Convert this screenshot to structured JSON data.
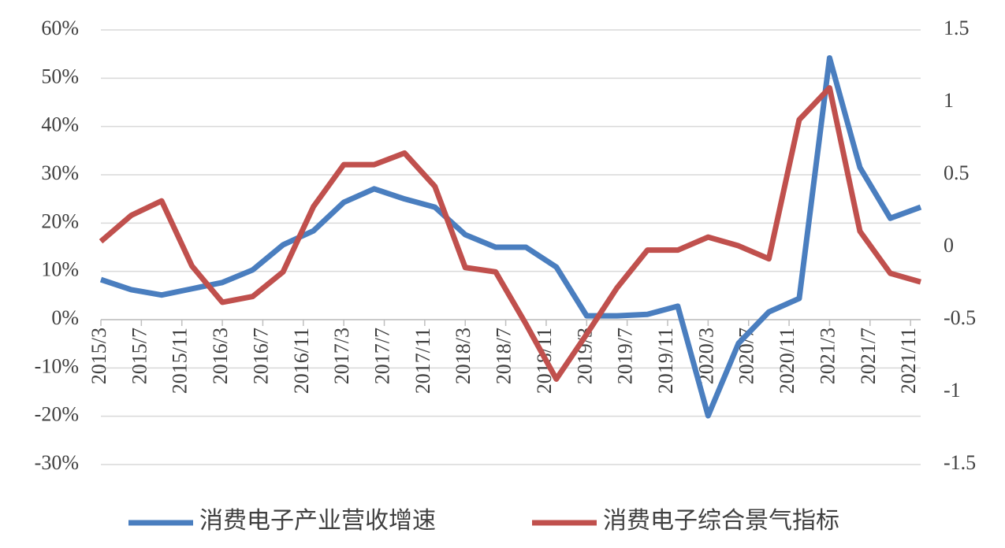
{
  "chart_data": {
    "type": "line",
    "x": [
      "2015/3",
      "2015/6",
      "2015/9",
      "2015/12",
      "2016/3",
      "2016/6",
      "2016/9",
      "2016/12",
      "2017/3",
      "2017/6",
      "2017/9",
      "2017/12",
      "2018/3",
      "2018/6",
      "2018/9",
      "2018/12",
      "2019/3",
      "2019/6",
      "2019/9",
      "2019/12",
      "2020/3",
      "2020/6",
      "2020/9",
      "2020/12",
      "2021/3",
      "2021/6",
      "2021/9",
      "2021/12"
    ],
    "xlim": [
      "2015/3",
      "2021/12"
    ],
    "xticks": [
      "2015/3",
      "2015/7",
      "2015/11",
      "2016/3",
      "2016/7",
      "2016/11",
      "2017/3",
      "2017/7",
      "2017/11",
      "2018/3",
      "2018/7",
      "2018/11",
      "2019/3",
      "2019/7",
      "2019/11",
      "2020/3",
      "2020/7",
      "2020/11",
      "2021/3",
      "2021/7",
      "2021/11"
    ],
    "series": [
      {
        "name": "消费电子产业营收增速",
        "color": "#4a7ebf",
        "values": [
          8.3,
          6.2,
          5.1,
          6.4,
          7.7,
          10.3,
          15.5,
          18.4,
          24.3,
          27.1,
          25,
          23.3,
          17.6,
          15,
          15,
          10.9,
          0.8,
          0.8,
          1.1,
          2.8,
          -19.9,
          -4.9,
          1.6,
          4.4,
          54.2,
          31.5,
          21,
          23.3
        ]
      },
      {
        "name": "消费电子综合景气指标",
        "color": "#c0504d",
        "axis": "y2",
        "values": [
          0.04,
          0.22,
          0.32,
          -0.13,
          -0.38,
          -0.34,
          -0.17,
          0.28,
          0.57,
          0.57,
          0.65,
          0.42,
          -0.14,
          -0.17,
          -0.53,
          -0.91,
          -0.6,
          -0.28,
          -0.02,
          -0.02,
          0.07,
          0.01,
          -0.08,
          0.88,
          1.1,
          0.11,
          -0.18,
          -0.24
        ]
      }
    ],
    "ylim": [
      -30,
      60
    ],
    "yticks": [
      {
        "value": 60,
        "label": "60%"
      },
      {
        "value": 50,
        "label": "50%"
      },
      {
        "value": 40,
        "label": "40%"
      },
      {
        "value": 30,
        "label": "30%"
      },
      {
        "value": 20,
        "label": "20%"
      },
      {
        "value": 10,
        "label": "10%"
      },
      {
        "value": 0,
        "label": "0%"
      },
      {
        "value": -10,
        "label": "-10%"
      },
      {
        "value": -20,
        "label": "-20%"
      },
      {
        "value": -30,
        "label": "-30%"
      }
    ],
    "y2lim": [
      -1.5,
      1.5
    ],
    "y2ticks": [
      1.5,
      1,
      0.5,
      0,
      -0.5,
      -1,
      -1.5
    ],
    "grid": true,
    "legend": "bottom"
  }
}
